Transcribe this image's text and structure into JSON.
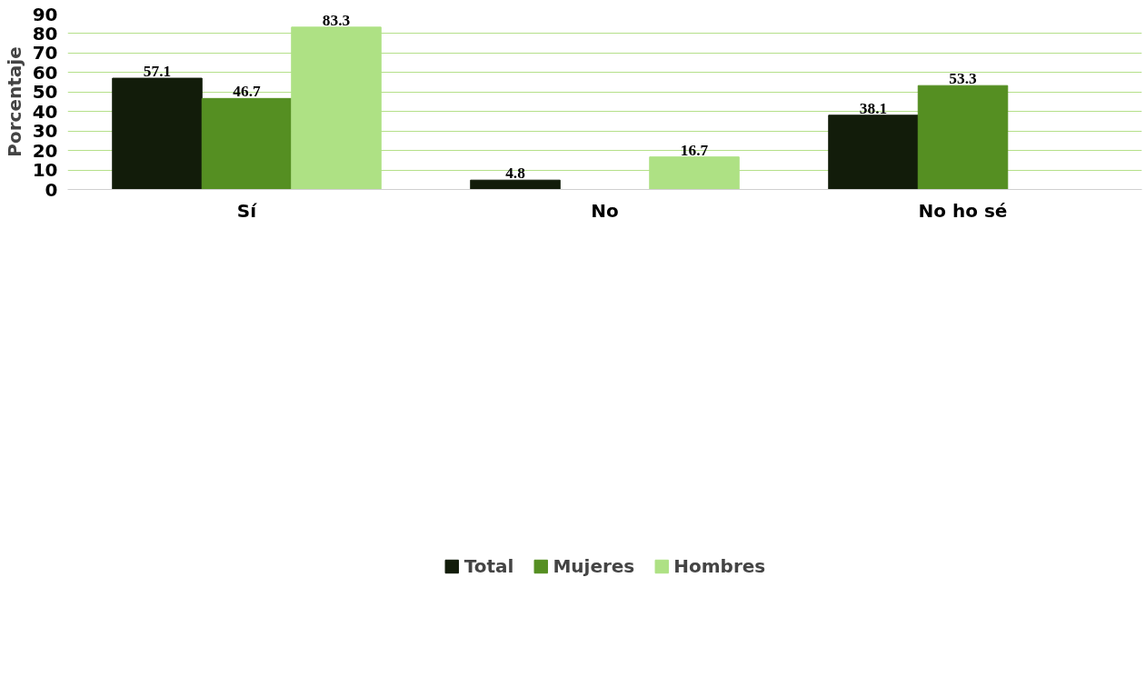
{
  "chart_data": {
    "type": "bar",
    "ylabel": "Porcentaje",
    "categories": [
      "Sí",
      "No",
      "No ho sé"
    ],
    "series": [
      {
        "name": "Total",
        "color": "#121c0a",
        "values": [
          57.1,
          4.8,
          38.1
        ]
      },
      {
        "name": "Mujeres",
        "color": "#558f22",
        "values": [
          46.7,
          null,
          53.3
        ]
      },
      {
        "name": "Hombres",
        "color": "#aee184",
        "values": [
          83.3,
          16.7,
          null
        ]
      }
    ],
    "ylim": [
      0,
      90
    ],
    "yticks": [
      0,
      10,
      20,
      30,
      40,
      50,
      60,
      70,
      80,
      90
    ],
    "grid": "y",
    "legend": "bottom",
    "data_labels": true
  }
}
